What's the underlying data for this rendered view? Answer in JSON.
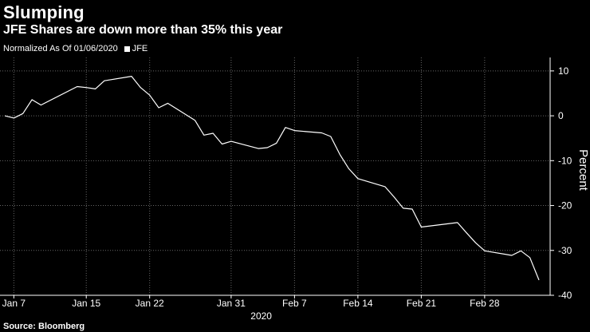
{
  "header": {
    "title": "Slumping",
    "subtitle": "JFE Shares are down more than 35% this year",
    "normalized_note": "Normalized As Of 01/06/2020"
  },
  "footer": {
    "source": "Source: Bloomberg"
  },
  "colors": {
    "background": "#000000",
    "line": "#ffffff",
    "grid": "#666666"
  },
  "chart_data": {
    "type": "line",
    "title": "Slumping",
    "subtitle": "JFE Shares are down more than 35% this year",
    "ylabel": "Percent",
    "xlabel": "2020",
    "ylim": [
      -40,
      13
    ],
    "yticks": [
      10,
      0,
      -10,
      -20,
      -30,
      -40
    ],
    "y_axis_side": "right",
    "grid": true,
    "legend_placement": "top-left",
    "x_tick_labels": [
      {
        "label": "Jan 7",
        "x": "2020-01-07"
      },
      {
        "label": "Jan 15",
        "x": "2020-01-15"
      },
      {
        "label": "Jan 22",
        "x": "2020-01-22"
      },
      {
        "label": "Jan 31",
        "x": "2020-01-31"
      },
      {
        "label": "Feb 7",
        "x": "2020-02-07"
      },
      {
        "label": "Feb 14",
        "x": "2020-02-14"
      },
      {
        "label": "Feb 21",
        "x": "2020-02-21"
      },
      {
        "label": "Feb 28",
        "x": "2020-02-28"
      }
    ],
    "series": [
      {
        "name": "JFE",
        "points": [
          [
            "2020-01-06",
            0.0
          ],
          [
            "2020-01-07",
            -0.5
          ],
          [
            "2020-01-08",
            0.5
          ],
          [
            "2020-01-09",
            3.6
          ],
          [
            "2020-01-10",
            2.4
          ],
          [
            "2020-01-14",
            6.5
          ],
          [
            "2020-01-15",
            6.3
          ],
          [
            "2020-01-16",
            6.0
          ],
          [
            "2020-01-17",
            7.8
          ],
          [
            "2020-01-20",
            8.8
          ],
          [
            "2020-01-21",
            6.3
          ],
          [
            "2020-01-22",
            4.6
          ],
          [
            "2020-01-23",
            1.8
          ],
          [
            "2020-01-24",
            2.8
          ],
          [
            "2020-01-27",
            -1.0
          ],
          [
            "2020-01-28",
            -4.3
          ],
          [
            "2020-01-29",
            -3.9
          ],
          [
            "2020-01-30",
            -6.3
          ],
          [
            "2020-01-31",
            -5.7
          ],
          [
            "2020-02-03",
            -7.3
          ],
          [
            "2020-02-04",
            -7.1
          ],
          [
            "2020-02-05",
            -6.1
          ],
          [
            "2020-02-06",
            -2.6
          ],
          [
            "2020-02-07",
            -3.3
          ],
          [
            "2020-02-10",
            -3.8
          ],
          [
            "2020-02-11",
            -4.6
          ],
          [
            "2020-02-12",
            -8.6
          ],
          [
            "2020-02-13",
            -11.8
          ],
          [
            "2020-02-14",
            -14.0
          ],
          [
            "2020-02-17",
            -15.8
          ],
          [
            "2020-02-18",
            -18.1
          ],
          [
            "2020-02-19",
            -20.6
          ],
          [
            "2020-02-20",
            -20.8
          ],
          [
            "2020-02-21",
            -24.8
          ],
          [
            "2020-02-25",
            -23.8
          ],
          [
            "2020-02-26",
            -26.1
          ],
          [
            "2020-02-27",
            -28.3
          ],
          [
            "2020-02-28",
            -30.1
          ],
          [
            "2020-03-02",
            -31.1
          ],
          [
            "2020-03-03",
            -30.1
          ],
          [
            "2020-03-04",
            -31.6
          ],
          [
            "2020-03-05",
            -36.6
          ]
        ]
      }
    ]
  }
}
